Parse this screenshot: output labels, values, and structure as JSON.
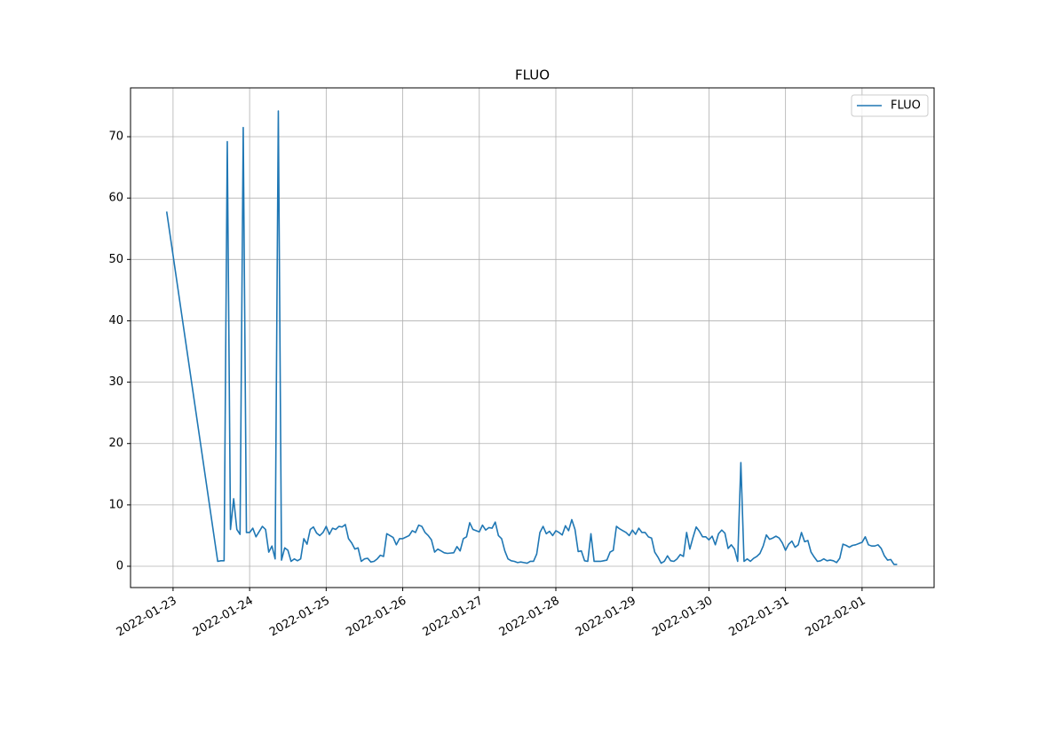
{
  "chart_data": {
    "type": "line",
    "title": "FLUO",
    "x": [
      "2022-01-22T22:00",
      "2022-01-23T14:00",
      "2022-01-23T15:00",
      "2022-01-23T16:00",
      "2022-01-23T17:00",
      "2022-01-23T18:00",
      "2022-01-23T19:00",
      "2022-01-23T20:00",
      "2022-01-23T21:00",
      "2022-01-23T22:00",
      "2022-01-23T23:00",
      "2022-01-24T00:00",
      "2022-01-24T01:00",
      "2022-01-24T02:00",
      "2022-01-24T04:00",
      "2022-01-24T05:00",
      "2022-01-24T06:00",
      "2022-01-24T07:00",
      "2022-01-24T08:00",
      "2022-01-24T09:00",
      "2022-01-24T10:00",
      "2022-01-24T11:00",
      "2022-01-24T12:00",
      "2022-01-24T13:00",
      "2022-01-24T14:00",
      "2022-01-24T15:00",
      "2022-01-24T16:00",
      "2022-01-24T17:00",
      "2022-01-24T18:00",
      "2022-01-24T19:00",
      "2022-01-24T20:00",
      "2022-01-24T21:00",
      "2022-01-24T22:00",
      "2022-01-24T23:00",
      "2022-01-25T00:00",
      "2022-01-25T01:00",
      "2022-01-25T02:00",
      "2022-01-25T03:00",
      "2022-01-25T04:00",
      "2022-01-25T05:00",
      "2022-01-25T06:00",
      "2022-01-25T07:00",
      "2022-01-25T08:00",
      "2022-01-25T09:00",
      "2022-01-25T10:00",
      "2022-01-25T11:00",
      "2022-01-25T12:00",
      "2022-01-25T13:00",
      "2022-01-25T14:00",
      "2022-01-25T15:00",
      "2022-01-25T16:00",
      "2022-01-25T17:00",
      "2022-01-25T18:00",
      "2022-01-25T19:00",
      "2022-01-25T20:00",
      "2022-01-25T21:00",
      "2022-01-25T22:00",
      "2022-01-25T23:00",
      "2022-01-26T00:00",
      "2022-01-26T02:00",
      "2022-01-26T03:00",
      "2022-01-26T04:00",
      "2022-01-26T05:00",
      "2022-01-26T06:00",
      "2022-01-26T07:00",
      "2022-01-26T08:00",
      "2022-01-26T09:00",
      "2022-01-26T10:00",
      "2022-01-26T11:00",
      "2022-01-26T12:00",
      "2022-01-26T13:00",
      "2022-01-26T14:00",
      "2022-01-26T16:00",
      "2022-01-26T17:00",
      "2022-01-26T18:00",
      "2022-01-26T19:00",
      "2022-01-26T20:00",
      "2022-01-26T21:00",
      "2022-01-26T22:00",
      "2022-01-26T23:00",
      "2022-01-27T00:00",
      "2022-01-27T01:00",
      "2022-01-27T02:00",
      "2022-01-27T03:00",
      "2022-01-27T04:00",
      "2022-01-27T05:00",
      "2022-01-27T06:00",
      "2022-01-27T07:00",
      "2022-01-27T08:00",
      "2022-01-27T09:00",
      "2022-01-27T10:00",
      "2022-01-27T11:00",
      "2022-01-27T12:00",
      "2022-01-27T13:00",
      "2022-01-27T14:00",
      "2022-01-27T15:00",
      "2022-01-27T16:00",
      "2022-01-27T17:00",
      "2022-01-27T18:00",
      "2022-01-27T19:00",
      "2022-01-27T20:00",
      "2022-01-27T21:00",
      "2022-01-27T22:00",
      "2022-01-27T23:00",
      "2022-01-28T00:00",
      "2022-01-28T01:00",
      "2022-01-28T02:00",
      "2022-01-28T03:00",
      "2022-01-28T04:00",
      "2022-01-28T05:00",
      "2022-01-28T06:00",
      "2022-01-28T07:00",
      "2022-01-28T08:00",
      "2022-01-28T09:00",
      "2022-01-28T10:00",
      "2022-01-28T11:00",
      "2022-01-28T12:00",
      "2022-01-28T13:00",
      "2022-01-28T14:00",
      "2022-01-28T15:00",
      "2022-01-28T16:00",
      "2022-01-28T17:00",
      "2022-01-28T18:00",
      "2022-01-28T19:00",
      "2022-01-28T20:00",
      "2022-01-28T21:00",
      "2022-01-28T22:00",
      "2022-01-28T23:00",
      "2022-01-29T00:00",
      "2022-01-29T01:00",
      "2022-01-29T02:00",
      "2022-01-29T03:00",
      "2022-01-29T04:00",
      "2022-01-29T05:00",
      "2022-01-29T06:00",
      "2022-01-29T07:00",
      "2022-01-29T08:00",
      "2022-01-29T09:00",
      "2022-01-29T10:00",
      "2022-01-29T11:00",
      "2022-01-29T12:00",
      "2022-01-29T13:00",
      "2022-01-29T14:00",
      "2022-01-29T15:00",
      "2022-01-29T16:00",
      "2022-01-29T17:00",
      "2022-01-29T18:00",
      "2022-01-29T19:00",
      "2022-01-29T20:00",
      "2022-01-29T21:00",
      "2022-01-29T22:00",
      "2022-01-29T23:00",
      "2022-01-30T00:00",
      "2022-01-30T01:00",
      "2022-01-30T02:00",
      "2022-01-30T03:00",
      "2022-01-30T04:00",
      "2022-01-30T05:00",
      "2022-01-30T06:00",
      "2022-01-30T07:00",
      "2022-01-30T08:00",
      "2022-01-30T09:00",
      "2022-01-30T10:00",
      "2022-01-30T11:00",
      "2022-01-30T12:00",
      "2022-01-30T13:00",
      "2022-01-30T14:00",
      "2022-01-30T15:00",
      "2022-01-30T16:00",
      "2022-01-30T17:00",
      "2022-01-30T18:00",
      "2022-01-30T19:00",
      "2022-01-30T20:00",
      "2022-01-30T21:00",
      "2022-01-30T22:00",
      "2022-01-30T23:00",
      "2022-01-31T00:00",
      "2022-01-31T01:00",
      "2022-01-31T02:00",
      "2022-01-31T03:00",
      "2022-01-31T04:00",
      "2022-01-31T05:00",
      "2022-01-31T06:00",
      "2022-01-31T07:00",
      "2022-01-31T08:00",
      "2022-01-31T09:00",
      "2022-01-31T10:00",
      "2022-01-31T11:00",
      "2022-01-31T12:00",
      "2022-01-31T13:00",
      "2022-01-31T14:00",
      "2022-01-31T15:00",
      "2022-01-31T16:00",
      "2022-01-31T17:00",
      "2022-01-31T18:00",
      "2022-01-31T19:00",
      "2022-01-31T20:00",
      "2022-01-31T21:00",
      "2022-01-31T22:00",
      "2022-01-31T23:00",
      "2022-02-01T00:00",
      "2022-02-01T01:00",
      "2022-02-01T02:00",
      "2022-02-01T03:00",
      "2022-02-01T04:00",
      "2022-02-01T05:00",
      "2022-02-01T06:00",
      "2022-02-01T07:00",
      "2022-02-01T08:00",
      "2022-02-01T09:00",
      "2022-02-01T10:00",
      "2022-02-01T11:00"
    ],
    "series": [
      {
        "name": "FLUO",
        "color": "#1f77b4",
        "values": [
          57.8,
          0.8,
          0.9,
          0.9,
          69.2,
          6.0,
          11.0,
          6.0,
          5.2,
          71.5,
          5.5,
          5.5,
          6.2,
          4.8,
          6.5,
          6.0,
          2.3,
          3.3,
          1.2,
          74.2,
          1.0,
          3.0,
          2.6,
          0.8,
          1.2,
          0.9,
          1.2,
          4.5,
          3.6,
          6.0,
          6.4,
          5.4,
          5.0,
          5.5,
          6.5,
          5.2,
          6.2,
          6.0,
          6.5,
          6.4,
          6.8,
          4.5,
          3.8,
          2.8,
          3.0,
          0.8,
          1.2,
          1.3,
          0.7,
          0.8,
          1.2,
          1.8,
          1.6,
          5.3,
          5.0,
          4.7,
          3.5,
          4.5,
          4.5,
          5.0,
          5.8,
          5.5,
          6.7,
          6.5,
          5.5,
          5.0,
          4.3,
          2.3,
          2.8,
          2.5,
          2.2,
          2.1,
          2.2,
          3.2,
          2.5,
          4.5,
          4.8,
          7.1,
          6.0,
          5.8,
          5.6,
          6.7,
          5.9,
          6.3,
          6.2,
          7.2,
          5.0,
          4.5,
          2.5,
          1.2,
          0.9,
          0.8,
          0.6,
          0.7,
          0.6,
          0.5,
          0.8,
          0.8,
          2.0,
          5.5,
          6.5,
          5.3,
          5.7,
          5.0,
          5.8,
          5.5,
          5.1,
          6.6,
          5.8,
          7.6,
          6.0,
          2.4,
          2.5,
          0.9,
          0.8,
          5.3,
          0.8,
          0.8,
          0.8,
          0.9,
          1.0,
          2.3,
          2.6,
          6.5,
          6.1,
          5.8,
          5.5,
          5.0,
          5.9,
          5.2,
          6.2,
          5.5,
          5.5,
          4.8,
          4.6,
          2.3,
          1.5,
          0.5,
          0.8,
          1.7,
          0.9,
          0.8,
          1.2,
          1.9,
          1.6,
          5.5,
          2.8,
          4.7,
          6.4,
          5.7,
          4.8,
          4.8,
          4.3,
          4.9,
          3.5,
          5.3,
          5.9,
          5.4,
          2.9,
          3.5,
          2.8,
          0.8,
          16.9,
          0.8,
          1.2,
          0.8,
          1.3,
          1.6,
          2.1,
          3.3,
          5.1,
          4.4,
          4.6,
          4.9,
          4.6,
          3.8,
          2.6,
          3.6,
          4.1,
          3.1,
          3.5,
          5.5,
          4.0,
          4.2,
          2.3,
          1.5,
          0.8,
          0.9,
          1.2,
          0.9,
          1.0,
          0.9,
          0.6,
          1.3,
          3.6,
          3.4,
          3.1,
          3.4,
          3.5,
          3.7,
          3.9,
          4.8,
          3.5,
          3.3,
          3.3,
          3.5,
          2.9,
          1.7,
          1.0,
          1.1,
          0.3,
          0.3
        ]
      }
    ],
    "xlim": [
      "2022-01-22T10:40",
      "2022-02-01T22:35"
    ],
    "xticks": [
      "2022-01-23",
      "2022-01-24",
      "2022-01-25",
      "2022-01-26",
      "2022-01-27",
      "2022-01-28",
      "2022-01-29",
      "2022-01-30",
      "2022-01-31",
      "2022-02-01"
    ],
    "ylim": [
      -3.47,
      77.96
    ],
    "yticks": [
      0,
      10,
      20,
      30,
      40,
      50,
      60,
      70
    ],
    "grid": true,
    "legend": "upper right"
  }
}
